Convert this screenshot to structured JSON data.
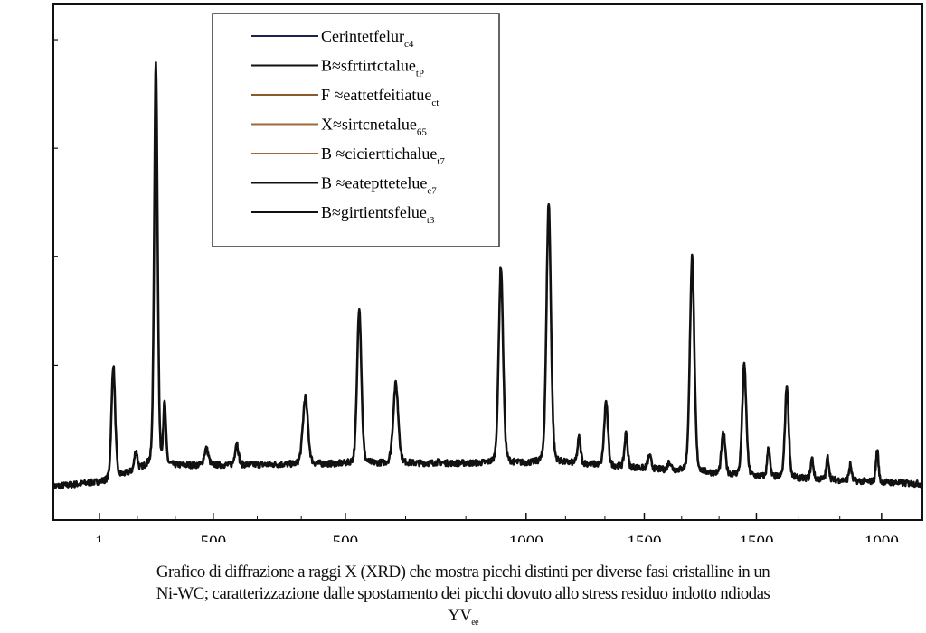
{
  "chart_data": {
    "type": "line",
    "title": "",
    "xlabel": "",
    "ylabel": "",
    "xlim": [
      0,
      1000
    ],
    "ylim": [
      0,
      100
    ],
    "grid": false,
    "legend_placement": "top-center",
    "x_ticks": [
      {
        "pos": 53,
        "label": "1"
      },
      {
        "pos": 184,
        "label": "500"
      },
      {
        "pos": 336,
        "label": "500"
      },
      {
        "pos": 544,
        "label": "1000"
      },
      {
        "pos": 680,
        "label": "1500"
      },
      {
        "pos": 809,
        "label": "1500"
      },
      {
        "pos": 953,
        "label": "1000"
      }
    ],
    "y_ticks": [
      7,
      30,
      51,
      72,
      93
    ],
    "baseline": [
      [
        0,
        6.5
      ],
      [
        60,
        7.5
      ],
      [
        110,
        10.5
      ],
      [
        400,
        11
      ],
      [
        600,
        11
      ],
      [
        800,
        8.5
      ],
      [
        1000,
        7
      ]
    ],
    "peaks": [
      [
        69,
        29.9,
        2.2
      ],
      [
        95,
        13.3,
        1.8
      ],
      [
        118,
        88.5,
        2.0
      ],
      [
        128,
        22,
        1.6
      ],
      [
        176,
        13.8,
        2.5
      ],
      [
        211,
        15,
        2.0
      ],
      [
        290,
        23.8,
        3.0
      ],
      [
        352,
        41.3,
        2.5
      ],
      [
        394,
        26.4,
        3.0
      ],
      [
        443,
        11.2,
        4
      ],
      [
        515,
        49.1,
        2.6
      ],
      [
        570,
        61.4,
        2.6
      ],
      [
        605,
        15.9,
        1.8
      ],
      [
        636,
        22.9,
        2.2
      ],
      [
        659,
        16.8,
        1.8
      ],
      [
        686,
        12.4,
        2
      ],
      [
        709,
        11.2,
        2
      ],
      [
        735,
        50.9,
        2.6
      ],
      [
        771,
        16.8,
        2.2
      ],
      [
        795,
        29.9,
        2.4
      ],
      [
        823,
        14.2,
        1.6
      ],
      [
        844,
        26,
        2.2
      ],
      [
        873,
        11.9,
        1.6
      ],
      [
        891,
        12.1,
        1.6
      ],
      [
        917,
        10.7,
        1.5
      ],
      [
        948,
        13.6,
        1.5
      ]
    ],
    "legend": [
      {
        "label": "Cerintetfelur",
        "sub": "c4",
        "color": "#1c2350"
      },
      {
        "label": "B≈sfrtirtctalue",
        "sub": "tP",
        "color": "#111111"
      },
      {
        "label": "F ≈eattetfeitiatue",
        "sub": "ct",
        "color": "#8a5a2e"
      },
      {
        "label": "X≈sirtcnetalue",
        "sub": "65",
        "color": "#9c6a38"
      },
      {
        "label": "B ≈cicierttichalue",
        "sub": "t7",
        "color": "#9c6a38"
      },
      {
        "label": "B ≈eatepttetelue",
        "sub": "e7",
        "color": "#111111"
      },
      {
        "label": "B≈girtientsfelue",
        "sub": "t3",
        "color": "#111111"
      }
    ]
  },
  "caption": {
    "line1": "Grafico di diffrazione a raggi X (XRD) che mostra picchi distinti per diverse fasi cristalline in un",
    "line2": "Ni-WC; caratterizzazione dalle spostamento dei picchi dovuto allo stress residuo indotto ndiodas",
    "line3": "YV",
    "line3_sub": "ee"
  }
}
